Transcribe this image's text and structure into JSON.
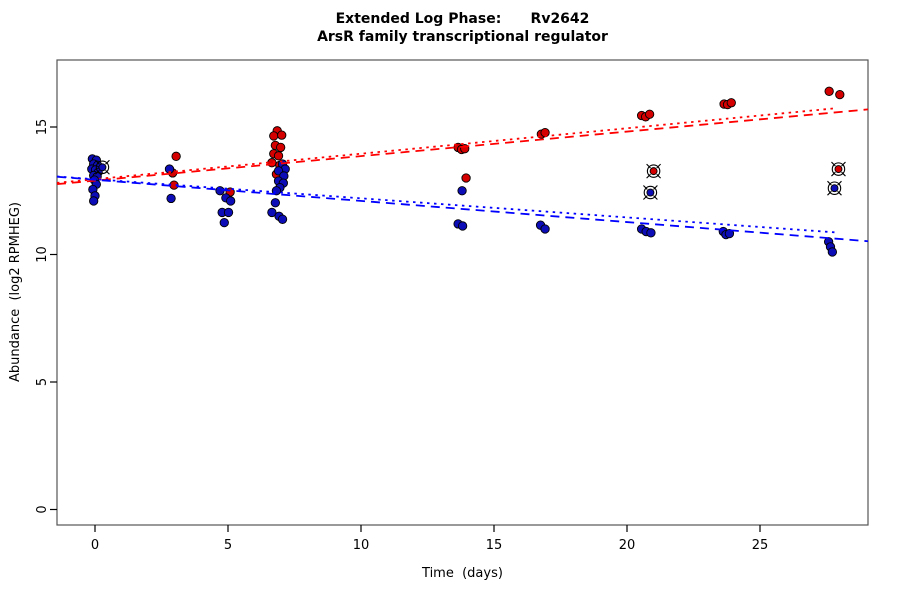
{
  "title": {
    "line1": "Extended Log Phase:      Rv2642",
    "line2": "ArsR family transcriptional regulator"
  },
  "axes": {
    "x_label": "Time  (days)",
    "y_label": "Abundance  (log2 RPMHEG)"
  },
  "chart_data": {
    "type": "scatter",
    "title": "Extended Log Phase: Rv2642",
    "subtitle": "ArsR family transcriptional regulator",
    "xlabel": "Time (days)",
    "ylabel": "Abundance (log2 RPMHEG)",
    "xlim": [
      -1.43,
      29.06
    ],
    "ylim": [
      -0.6,
      17.6
    ],
    "x_ticks": [
      0,
      5,
      10,
      15,
      20,
      25
    ],
    "y_ticks": [
      0,
      5,
      10,
      15
    ],
    "grid": "off",
    "legend": "none",
    "colors": {
      "red_point": "#d40000",
      "blue_point": "#0d0db8",
      "red_line": "#ff0000",
      "blue_line": "#0000ff",
      "marker_edge": "#000000",
      "frame": "#555555"
    },
    "series": [
      {
        "name": "red-condition",
        "marker": "filled-circle",
        "color": "#d40000",
        "points": [
          [
            3.05,
            13.85
          ],
          [
            2.92,
            13.2
          ],
          [
            2.97,
            12.72
          ],
          [
            5.08,
            12.45
          ],
          [
            6.85,
            14.85
          ],
          [
            6.72,
            14.65
          ],
          [
            7.02,
            14.68
          ],
          [
            6.78,
            14.28
          ],
          [
            6.98,
            14.2
          ],
          [
            6.72,
            13.95
          ],
          [
            6.9,
            13.87
          ],
          [
            6.65,
            13.6
          ],
          [
            6.95,
            13.5
          ],
          [
            6.82,
            13.15
          ],
          [
            7.0,
            12.75
          ],
          [
            13.65,
            14.2
          ],
          [
            13.78,
            14.12
          ],
          [
            13.9,
            14.15
          ],
          [
            13.95,
            13.0
          ],
          [
            16.78,
            14.72
          ],
          [
            16.92,
            14.78
          ],
          [
            20.55,
            15.45
          ],
          [
            20.7,
            15.4
          ],
          [
            20.85,
            15.5
          ],
          [
            23.65,
            15.9
          ],
          [
            23.78,
            15.88
          ],
          [
            23.92,
            15.95
          ],
          [
            27.6,
            16.4
          ],
          [
            28.0,
            16.27
          ]
        ]
      },
      {
        "name": "blue-condition",
        "marker": "filled-circle",
        "color": "#0d0db8",
        "points": [
          [
            -0.1,
            13.75
          ],
          [
            0.05,
            13.7
          ],
          [
            -0.05,
            13.55
          ],
          [
            0.1,
            13.5
          ],
          [
            -0.12,
            13.35
          ],
          [
            0.02,
            13.32
          ],
          [
            0.12,
            13.22
          ],
          [
            -0.05,
            13.1
          ],
          [
            0.08,
            13.05
          ],
          [
            -0.02,
            12.92
          ],
          [
            0.05,
            12.75
          ],
          [
            -0.08,
            12.55
          ],
          [
            0.0,
            12.3
          ],
          [
            -0.05,
            12.1
          ],
          [
            2.8,
            13.35
          ],
          [
            2.86,
            12.2
          ],
          [
            4.7,
            12.5
          ],
          [
            4.92,
            12.22
          ],
          [
            5.1,
            12.1
          ],
          [
            4.78,
            11.65
          ],
          [
            5.02,
            11.65
          ],
          [
            4.86,
            11.25
          ],
          [
            7.05,
            13.55
          ],
          [
            7.15,
            13.35
          ],
          [
            6.9,
            13.28
          ],
          [
            7.1,
            13.08
          ],
          [
            6.9,
            12.88
          ],
          [
            7.08,
            12.8
          ],
          [
            6.95,
            12.62
          ],
          [
            6.82,
            12.5
          ],
          [
            6.78,
            12.03
          ],
          [
            6.65,
            11.65
          ],
          [
            6.92,
            11.5
          ],
          [
            7.05,
            11.38
          ],
          [
            13.8,
            12.5
          ],
          [
            13.65,
            11.2
          ],
          [
            13.82,
            11.12
          ],
          [
            16.75,
            11.15
          ],
          [
            16.92,
            11.0
          ],
          [
            20.55,
            11.0
          ],
          [
            20.72,
            10.9
          ],
          [
            20.9,
            10.85
          ],
          [
            23.62,
            10.9
          ],
          [
            23.72,
            10.78
          ],
          [
            23.85,
            10.82
          ],
          [
            27.58,
            10.5
          ],
          [
            27.65,
            10.3
          ],
          [
            27.72,
            10.1
          ]
        ]
      },
      {
        "name": "circled-outliers",
        "marker": "circled-cross-dot",
        "points": [
          {
            "x": 0.28,
            "y": 13.42,
            "color": "#0d0db8"
          },
          {
            "x": 21.0,
            "y": 13.27,
            "color": "#d40000"
          },
          {
            "x": 20.88,
            "y": 12.43,
            "color": "#0d0db8"
          },
          {
            "x": 27.95,
            "y": 13.35,
            "color": "#d40000"
          },
          {
            "x": 27.8,
            "y": 12.6,
            "color": "#0d0db8"
          }
        ]
      }
    ],
    "trend_lines": [
      {
        "name": "red-fit-dashed",
        "color": "#ff0000",
        "style": "dashed",
        "x1": -1.43,
        "y1": 12.76,
        "x2": 29.06,
        "y2": 15.69
      },
      {
        "name": "red-fit-dotted",
        "color": "#ff0000",
        "style": "dotted",
        "x1": -1.43,
        "y1": 12.81,
        "x2": 27.8,
        "y2": 15.73
      },
      {
        "name": "blue-fit-dashed",
        "color": "#0000ff",
        "style": "dashed",
        "x1": -1.43,
        "y1": 13.05,
        "x2": 29.06,
        "y2": 10.52
      },
      {
        "name": "blue-fit-dotted",
        "color": "#0000ff",
        "style": "dotted",
        "x1": -1.43,
        "y1": 13.06,
        "x2": 27.8,
        "y2": 10.87
      }
    ]
  }
}
